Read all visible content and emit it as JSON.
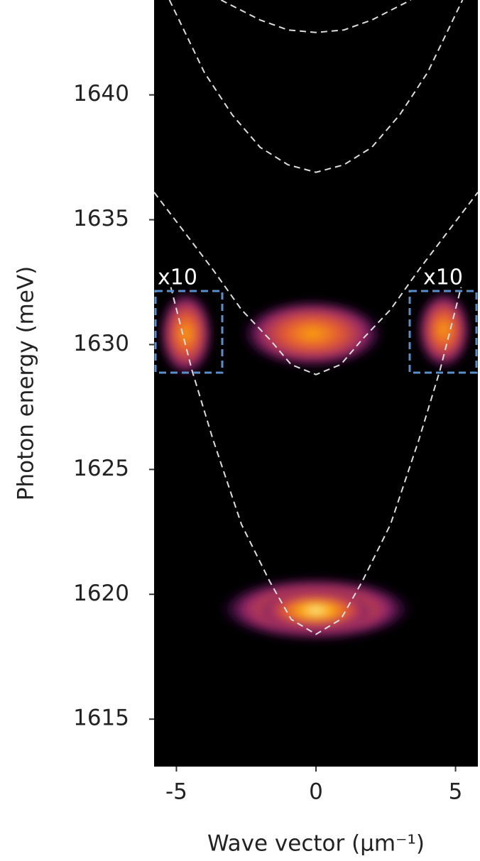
{
  "chart_data": {
    "type": "line",
    "xlabel": "Wave vector (µm⁻¹)",
    "ylabel": "Photon energy (meV)",
    "xlim": [
      -5.8,
      5.8
    ],
    "ylim": [
      1613.1,
      1643.8
    ],
    "xticks": [
      -5,
      0,
      5
    ],
    "yticks": [
      1615,
      1620,
      1625,
      1630,
      1635,
      1640
    ],
    "annotations": [
      "x10",
      "x10"
    ],
    "series": [
      {
        "color": "#dddddd",
        "x": [
          -3.4,
          -2,
          -1,
          0,
          1,
          2,
          3.4
        ],
        "values": [
          1643.8,
          1643.0,
          1642.6,
          1642.5,
          1642.6,
          1643.0,
          1643.8
        ]
      },
      {
        "color": "#dddddd",
        "x": [
          -5.25,
          -4,
          -3,
          -2,
          -1,
          0,
          1,
          2,
          3,
          4,
          5.25
        ],
        "values": [
          1643.8,
          1640.9,
          1639.2,
          1637.9,
          1637.2,
          1636.9,
          1637.2,
          1637.9,
          1639.2,
          1640.9,
          1643.8
        ]
      },
      {
        "color": "#dddddd",
        "x": [
          -5.8,
          -4.71,
          -3.69,
          -2.67,
          -1.65,
          -0.89,
          0,
          0.89,
          1.65,
          2.67,
          3.69,
          4.71,
          5.8
        ],
        "values": [
          1636.1,
          1634.5,
          1633.0,
          1631.4,
          1630.2,
          1629.2,
          1628.8,
          1629.2,
          1630.2,
          1631.4,
          1633.0,
          1634.5,
          1636.1
        ]
      },
      {
        "color": "#dddddd",
        "x": [
          -5.2,
          -4.45,
          -3.69,
          -2.67,
          -1.65,
          -0.89,
          0,
          0.89,
          1.65,
          2.67,
          3.69,
          4.45,
          5.2
        ],
        "values": [
          1632.3,
          1629.0,
          1626.2,
          1622.8,
          1620.5,
          1619.0,
          1618.4,
          1619.0,
          1620.5,
          1622.8,
          1626.2,
          1629.0,
          1632.3
        ]
      }
    ]
  }
}
